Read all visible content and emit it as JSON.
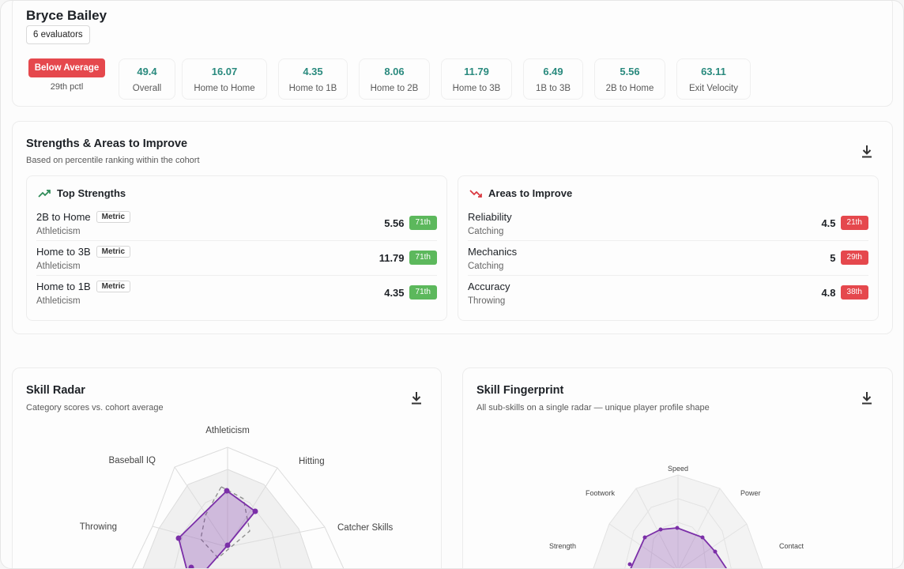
{
  "player": {
    "name": "Bryce Bailey",
    "evaluators": "6 evaluators"
  },
  "percentile": {
    "label": "Below Average",
    "sub": "29th pctl",
    "color": "#e5484d"
  },
  "stats": [
    {
      "value": "49.4",
      "label": "Overall"
    },
    {
      "value": "16.07",
      "label": "Home to Home"
    },
    {
      "value": "4.35",
      "label": "Home to 1B"
    },
    {
      "value": "8.06",
      "label": "Home to 2B"
    },
    {
      "value": "11.79",
      "label": "Home to 3B"
    },
    {
      "value": "6.49",
      "label": "1B to 3B"
    },
    {
      "value": "5.56",
      "label": "2B to Home"
    },
    {
      "value": "63.11",
      "label": "Exit Velocity"
    }
  ],
  "strengths_section": {
    "title": "Strengths & Areas to Improve",
    "subtitle": "Based on percentile ranking within the cohort",
    "download_icon": "download-icon",
    "top": {
      "title": "Top Strengths",
      "icon": "trending-up-icon",
      "items": [
        {
          "name": "2B to Home",
          "tag": "Metric",
          "category": "Athleticism",
          "value": "5.56",
          "pct": "71th"
        },
        {
          "name": "Home to 3B",
          "tag": "Metric",
          "category": "Athleticism",
          "value": "11.79",
          "pct": "71th"
        },
        {
          "name": "Home to 1B",
          "tag": "Metric",
          "category": "Athleticism",
          "value": "4.35",
          "pct": "71th"
        }
      ]
    },
    "improve": {
      "title": "Areas to Improve",
      "icon": "trending-down-icon",
      "items": [
        {
          "name": "Reliability",
          "category": "Catching",
          "value": "4.5",
          "pct": "21th"
        },
        {
          "name": "Mechanics",
          "category": "Catching",
          "value": "5",
          "pct": "29th"
        },
        {
          "name": "Accuracy",
          "category": "Throwing",
          "value": "4.8",
          "pct": "38th"
        }
      ]
    }
  },
  "skill_radar": {
    "title": "Skill Radar",
    "subtitle": "Category scores vs. cohort average",
    "download_icon": "download-icon",
    "visible_axes": [
      "Athleticism",
      "Hitting",
      "Catcher Skills",
      "Baseball IQ",
      "Throwing"
    ]
  },
  "skill_fingerprint": {
    "title": "Skill Fingerprint",
    "subtitle": "All sub-skills on a single radar — unique player profile shape",
    "download_icon": "download-icon",
    "visible_axes": [
      "Speed",
      "Power",
      "Contact",
      "Footwork",
      "Strength"
    ]
  },
  "colors": {
    "accent_teal": "#2a8a7e",
    "good": "#5cb85c",
    "bad": "#e5484d",
    "radar_purple": "#7b2fa8"
  }
}
